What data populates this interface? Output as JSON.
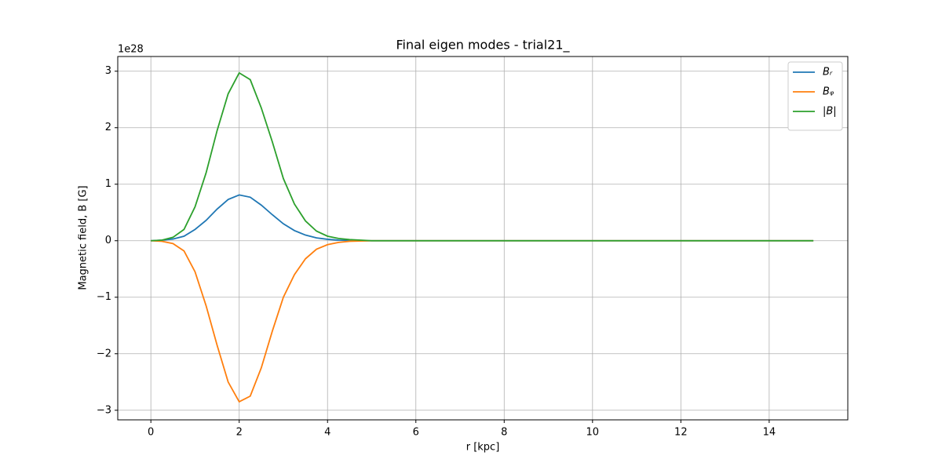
{
  "chart_data": {
    "type": "line",
    "title": "Final eigen modes - trial21_",
    "x_label": "r [kpc]",
    "y_label": "Magnetic field, B [G]",
    "y_offset_label": "1e28",
    "x": [
      0,
      0.25,
      0.5,
      0.75,
      1,
      1.25,
      1.5,
      1.75,
      2,
      2.25,
      2.5,
      2.75,
      3,
      3.25,
      3.5,
      3.75,
      4,
      4.25,
      4.5,
      4.75,
      5,
      5.25,
      5.5,
      5.75,
      6,
      7,
      8,
      9,
      10,
      11,
      12,
      13,
      14,
      15
    ],
    "series": [
      {
        "name": "Bᵣ",
        "color": "#1f77b4",
        "values": [
          0,
          0.01,
          0.03,
          0.08,
          0.2,
          0.36,
          0.56,
          0.73,
          0.81,
          0.77,
          0.63,
          0.46,
          0.3,
          0.18,
          0.1,
          0.05,
          0.025,
          0.01,
          0.005,
          0,
          0,
          0,
          0,
          0,
          0,
          0,
          0,
          0,
          0,
          0,
          0,
          0,
          0,
          0
        ]
      },
      {
        "name": "Bᵩ",
        "color": "#ff7f0e",
        "values": [
          0,
          -0.01,
          -0.05,
          -0.18,
          -0.55,
          -1.15,
          -1.85,
          -2.5,
          -2.85,
          -2.75,
          -2.25,
          -1.6,
          -1.0,
          -0.6,
          -0.32,
          -0.15,
          -0.07,
          -0.03,
          -0.01,
          -0.005,
          0,
          0,
          0,
          0,
          0,
          0,
          0,
          0,
          0,
          0,
          0,
          0,
          0,
          0
        ]
      },
      {
        "name": "|B|",
        "color": "#2ca02c",
        "values": [
          0,
          0.01,
          0.06,
          0.2,
          0.6,
          1.2,
          1.95,
          2.6,
          2.97,
          2.85,
          2.35,
          1.75,
          1.1,
          0.65,
          0.35,
          0.17,
          0.08,
          0.04,
          0.02,
          0.01,
          0,
          0,
          0,
          0,
          0,
          0,
          0,
          0,
          0,
          0,
          0,
          0,
          0,
          0
        ]
      }
    ],
    "xlim": [
      -0.75,
      15.78
    ],
    "ylim": [
      -3.17,
      3.26
    ],
    "xticks": [
      0,
      2,
      4,
      6,
      8,
      10,
      12,
      14
    ],
    "yticks": [
      {
        "value": -3,
        "label": "−3"
      },
      {
        "value": -2,
        "label": "−2"
      },
      {
        "value": -1,
        "label": "−1"
      },
      0,
      1,
      2,
      3
    ],
    "grid": true,
    "legend": "upper right"
  }
}
